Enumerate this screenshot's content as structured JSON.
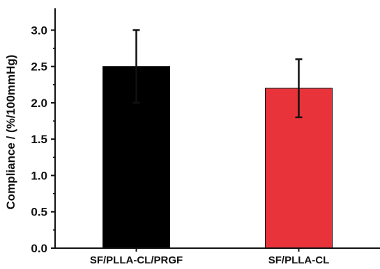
{
  "chart_data": {
    "type": "bar",
    "title": "",
    "xlabel": "",
    "ylabel": "Compliance / (%/100mmHg)",
    "categories": [
      "SF/PLLA-CL/PRGF",
      "SF/PLLA-CL"
    ],
    "values": [
      2.5,
      2.2
    ],
    "error": [
      0.5,
      0.4
    ],
    "colors": [
      "#000000",
      "#e8333a"
    ],
    "ylim": [
      0,
      3.3
    ],
    "yticks": [
      "0.0",
      "0.5",
      "1.0",
      "1.5",
      "2.0",
      "2.5",
      "3.0"
    ],
    "grid": false,
    "legend": "none"
  }
}
